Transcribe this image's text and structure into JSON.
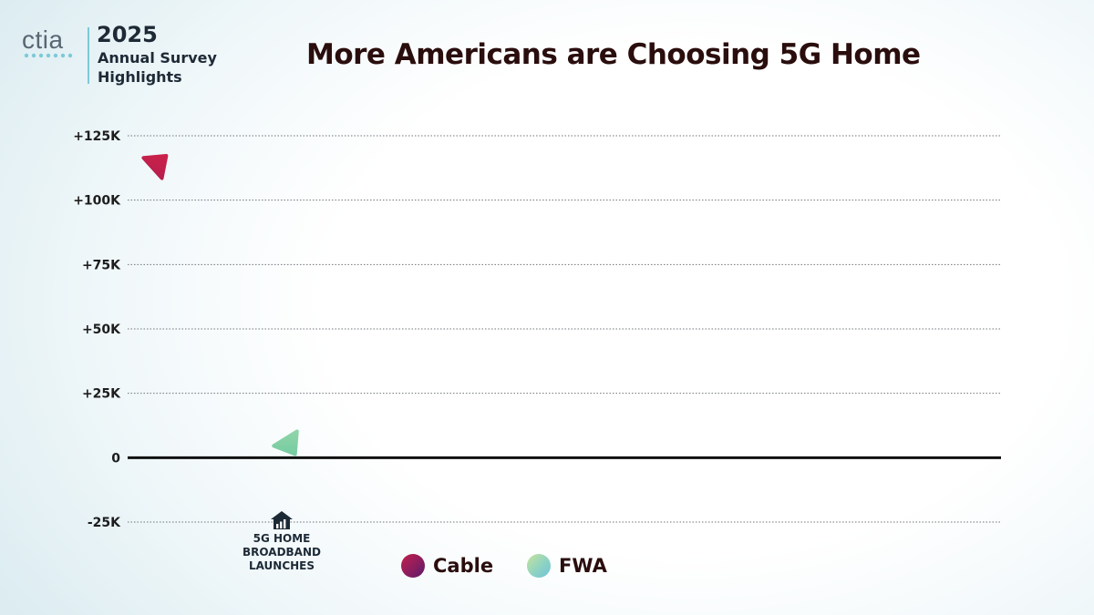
{
  "branding": {
    "logo_text": "ctia",
    "survey_year": "2025",
    "survey_line1": "Annual Survey",
    "survey_line2": "Highlights"
  },
  "chart_data": {
    "type": "line",
    "title": "More Americans are Choosing 5G Home",
    "xlabel": "",
    "ylabel": "",
    "ylim": [
      -25000,
      125000
    ],
    "y_ticks": [
      {
        "value": 125000,
        "label": "+125K"
      },
      {
        "value": 100000,
        "label": "+100K"
      },
      {
        "value": 75000,
        "label": "+75K"
      },
      {
        "value": 50000,
        "label": "+50K"
      },
      {
        "value": 25000,
        "label": "+25K"
      },
      {
        "value": 0,
        "label": "0"
      },
      {
        "value": -25000,
        "label": "-25K"
      }
    ],
    "grid": true,
    "series": [
      {
        "name": "Cable",
        "values": [],
        "color_start": "#c2204a",
        "color_end": "#5b1a6c"
      },
      {
        "name": "FWA",
        "values": [],
        "color_start": "#c7e39b",
        "color_end": "#6fc3d8"
      }
    ],
    "markers": [
      {
        "name": "Cable",
        "direction": "up",
        "value": 112000
      },
      {
        "name": "FWA",
        "direction": "up",
        "value": 8000
      }
    ],
    "annotation": {
      "icon": "house-signal-icon",
      "lines": [
        "5G HOME",
        "BROADBAND",
        "LAUNCHES"
      ]
    },
    "legend": [
      {
        "label": "Cable"
      },
      {
        "label": "FWA"
      }
    ],
    "legend_position": "bottom-center"
  },
  "colors": {
    "title": "#2a0d0d",
    "grid": "#6f7479",
    "zero_line": "#111111",
    "cable_arrow": "#c2204a",
    "fwa_arrow": "#7ccfa4",
    "logo": "#5a6672",
    "logo_accent": "#7dcad8"
  }
}
